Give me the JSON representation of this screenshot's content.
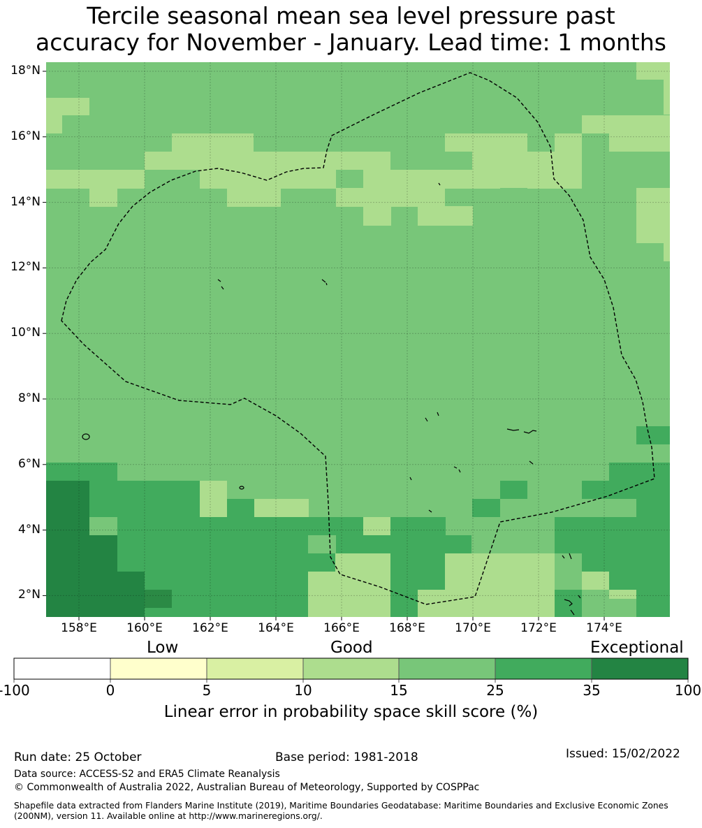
{
  "title": {
    "line1": "Tercile seasonal mean sea level pressure past",
    "line2": "accuracy for November - January. Lead time: 1 months"
  },
  "map": {
    "lat_labels": [
      "18°N",
      "16°N",
      "14°N",
      "12°N",
      "10°N",
      "8°N",
      "6°N",
      "4°N",
      "2°N"
    ],
    "lon_labels": [
      "158°E",
      "160°E",
      "162°E",
      "164°E",
      "166°E",
      "168°E",
      "170°E",
      "172°E",
      "174°E"
    ]
  },
  "colorbar": {
    "category_labels": [
      "Low",
      "Good",
      "Exceptional"
    ],
    "ticks": [
      "-100",
      "0",
      "5",
      "10",
      "15",
      "25",
      "35",
      "100"
    ],
    "colors": [
      "#ffffff",
      "#ffffcc",
      "#d9f0a3",
      "#addd8e",
      "#78c679",
      "#41ab5d",
      "#238443"
    ],
    "label": "Linear error in probability space skill score (%)"
  },
  "footer": {
    "run_date": "Run date: 25 October",
    "base_period": "Base period: 1981-2018",
    "issued": "Issued: 15/02/2022",
    "data_source": "Data source: ACCESS-S2 and ERA5 Climate Reanalysis",
    "copyright": "© Commonwealth of Australia 2022, Australian Bureau of Meteorology, Supported by COSPPac",
    "shapefile": "Shapefile data extracted from Flanders Marine Institute (2019), Maritime Boundaries Geodatabase: Maritime Boundaries and Exclusive Economic Zones (200NM), version 11. Available online at http://www.marineregions.org/."
  }
}
